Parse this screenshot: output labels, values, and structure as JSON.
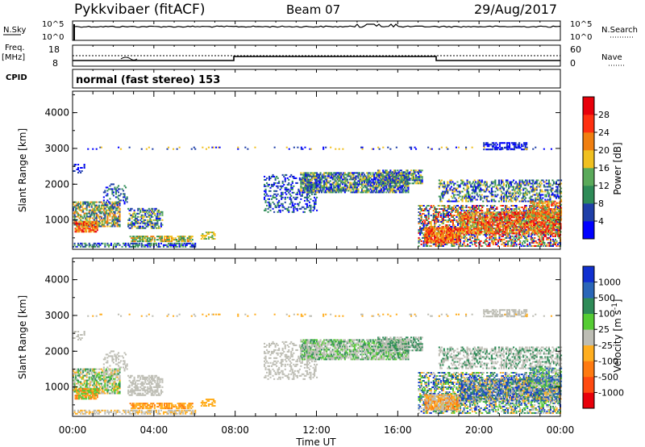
{
  "header": {
    "radar": "Pykkvibaer (fitACF)",
    "beam": "Beam 07",
    "date": "29/Aug/2017"
  },
  "sky_panel": {
    "left_label": "N.Sky",
    "right_label": "N.Search",
    "tick_top": "10^5",
    "tick_bottom": "10^0",
    "right_tick_top": "10^5",
    "right_tick_bottom": "10^0"
  },
  "freq_panel": {
    "left_label": "Freq.",
    "left_unit": "[MHz]",
    "left_ticks": [
      "18",
      "8"
    ],
    "right_label": "Nave",
    "right_ticks": [
      "60",
      "0"
    ],
    "cpid_label": "CPID",
    "mode": "normal (fast stereo) 153"
  },
  "colors": {
    "power_scale": [
      "#0000ff",
      "#1f3fa8",
      "#2e8b57",
      "#5aaa5a",
      "#f0c020",
      "#f07f10",
      "#ff3010",
      "#e8000a"
    ],
    "velocity_scale": [
      "#1030d0",
      "#2a66b8",
      "#2e8b57",
      "#55cc33",
      "#bdbdb4",
      "#ffae20",
      "#ff7a10",
      "#ff4a10",
      "#e8000a"
    ]
  },
  "chart_data": [
    {
      "type": "heatmap",
      "title": "Power",
      "ylabel": "Slant Range [km]",
      "ylim": [
        180,
        4600
      ],
      "yticks": [
        "1000",
        "2000",
        "3000",
        "4000"
      ],
      "colorbar_label": "Power [dB]",
      "colorbar_ticks": [
        "4",
        "8",
        "12",
        "16",
        "20",
        "24",
        "28"
      ]
    },
    {
      "type": "heatmap",
      "title": "Velocity",
      "ylabel": "Slant Range [km]",
      "ylim": [
        180,
        4600
      ],
      "yticks": [
        "1000",
        "2000",
        "3000",
        "4000"
      ],
      "colorbar_label": "Velocity [m s^-1]",
      "colorbar_ticks": [
        "1000",
        "500",
        "100",
        "25",
        "-25",
        "-100",
        "-500",
        "-1000"
      ],
      "xlabel": "Time UT",
      "xticks": [
        "00:00",
        "04:00",
        "08:00",
        "12:00",
        "16:00",
        "20:00",
        "00:00"
      ],
      "xlim_hours": [
        0,
        24
      ]
    }
  ]
}
